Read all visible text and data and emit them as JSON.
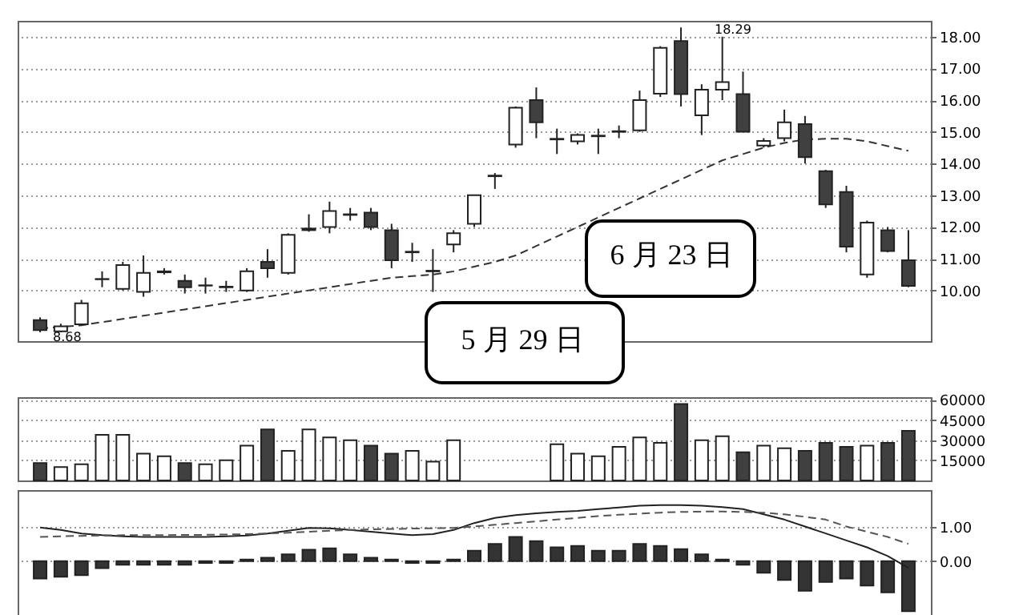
{
  "chart_data": [
    {
      "type": "candlestick",
      "categories": [
        null,
        null,
        null,
        null,
        null,
        null,
        null,
        null,
        null,
        null,
        null,
        null,
        null,
        null,
        null,
        null,
        null,
        null,
        null,
        null,
        null,
        null,
        null,
        null,
        null,
        null,
        null,
        null,
        null,
        null,
        null,
        null,
        null,
        null,
        null,
        null,
        null,
        null,
        null,
        null,
        null,
        null,
        null
      ],
      "ohlc": [
        [
          9.06,
          9.15,
          8.68,
          8.75
        ],
        [
          8.71,
          8.95,
          8.68,
          8.87
        ],
        [
          8.93,
          9.7,
          8.9,
          9.59
        ],
        [
          10.35,
          10.6,
          10.1,
          10.36
        ],
        [
          10.05,
          10.9,
          10.0,
          10.8
        ],
        [
          9.95,
          11.1,
          9.8,
          10.55
        ],
        [
          10.57,
          10.7,
          10.5,
          10.6
        ],
        [
          10.3,
          10.5,
          9.9,
          10.1
        ],
        [
          10.15,
          10.4,
          9.9,
          10.16
        ],
        [
          10.1,
          10.3,
          9.95,
          10.12
        ],
        [
          10.0,
          10.7,
          9.95,
          10.6
        ],
        [
          10.9,
          11.3,
          10.4,
          10.7
        ],
        [
          10.55,
          11.8,
          10.5,
          11.75
        ],
        [
          11.9,
          12.4,
          11.85,
          11.95
        ],
        [
          12.0,
          12.8,
          11.8,
          12.5
        ],
        [
          12.38,
          12.6,
          12.2,
          12.4
        ],
        [
          12.45,
          12.6,
          11.9,
          12.0
        ],
        [
          11.9,
          12.1,
          10.7,
          10.95
        ],
        [
          11.2,
          11.5,
          10.9,
          11.22
        ],
        [
          10.6,
          11.3,
          9.95,
          10.62
        ],
        [
          11.45,
          11.9,
          11.2,
          11.8
        ],
        [
          12.1,
          13.0,
          12.0,
          13.0
        ],
        [
          13.6,
          13.7,
          13.2,
          13.62
        ],
        [
          14.6,
          15.8,
          14.5,
          15.76
        ],
        [
          16.0,
          16.4,
          14.8,
          15.3
        ],
        [
          14.76,
          15.1,
          14.3,
          14.78
        ],
        [
          14.7,
          14.95,
          14.6,
          14.9
        ],
        [
          14.86,
          15.1,
          14.3,
          14.88
        ],
        [
          15.0,
          15.2,
          14.8,
          15.02
        ],
        [
          15.05,
          16.3,
          15.0,
          16.0
        ],
        [
          16.2,
          17.7,
          16.1,
          17.65
        ],
        [
          17.86,
          18.29,
          15.8,
          16.19
        ],
        [
          15.52,
          16.5,
          14.9,
          16.33
        ],
        [
          16.33,
          18.0,
          16.0,
          16.57
        ],
        [
          16.19,
          16.9,
          15.0,
          15.0
        ],
        [
          14.57,
          14.8,
          14.5,
          14.71
        ],
        [
          14.8,
          15.7,
          14.7,
          15.3
        ],
        [
          15.24,
          15.5,
          14.0,
          14.2
        ],
        [
          13.76,
          13.8,
          12.6,
          12.71
        ],
        [
          13.1,
          13.3,
          11.2,
          11.38
        ],
        [
          10.5,
          12.2,
          10.4,
          12.14
        ],
        [
          11.9,
          12.0,
          11.2,
          11.24
        ],
        [
          10.95,
          11.9,
          10.1,
          10.14
        ]
      ],
      "series": [
        {
          "type": "line",
          "color": "#333333",
          "line_style": "dashed",
          "values": [
            8.8,
            8.85,
            8.9,
            9.0,
            9.1,
            9.2,
            9.3,
            9.4,
            9.5,
            9.6,
            9.7,
            9.8,
            9.9,
            10.0,
            10.1,
            10.2,
            10.3,
            10.4,
            10.45,
            10.5,
            10.6,
            10.75,
            10.9,
            11.1,
            11.4,
            11.7,
            12.0,
            12.3,
            12.6,
            12.9,
            13.2,
            13.5,
            13.8,
            14.1,
            14.3,
            14.5,
            14.65,
            14.76,
            14.78,
            14.78,
            14.7,
            14.55,
            14.4
          ]
        }
      ],
      "ylim": [
        8.4,
        18.5
      ],
      "yticks": [
        {
          "value": 10,
          "label": "10.00"
        },
        {
          "value": 11,
          "label": "11.00"
        },
        {
          "value": 12,
          "label": "12.00"
        },
        {
          "value": 13,
          "label": "13.00"
        },
        {
          "value": 14,
          "label": "14.00"
        },
        {
          "value": 15,
          "label": "15.00"
        },
        {
          "value": 16,
          "label": "16.00"
        },
        {
          "value": 17,
          "label": "17.00"
        },
        {
          "value": 18,
          "label": "18.00"
        }
      ],
      "grid": "y",
      "tick_labels": "y",
      "annotations": [
        "18.29",
        "8.68",
        "6 月 23 日",
        "5 月 29 日"
      ]
    },
    {
      "type": "bar",
      "categories": [
        null,
        null,
        null,
        null,
        null,
        null,
        null,
        null,
        null,
        null,
        null,
        null,
        null,
        null,
        null,
        null,
        null,
        null,
        null,
        null,
        null,
        null,
        null,
        null,
        null,
        null,
        null,
        null,
        null,
        null,
        null,
        null,
        null,
        null,
        null,
        null,
        null,
        null,
        null,
        null,
        null,
        null,
        null
      ],
      "values": [
        13000,
        10000,
        12000,
        34000,
        34000,
        20000,
        18000,
        13000,
        12000,
        15000,
        26000,
        38000,
        22000,
        38000,
        32000,
        30000,
        26000,
        20000,
        22000,
        14000,
        30000,
        null,
        null,
        null,
        null,
        27000,
        20000,
        18000,
        25000,
        32000,
        28000,
        57000,
        30000,
        33000,
        21000,
        26000,
        24000,
        22000,
        28000,
        25000,
        26000,
        28000,
        37000
      ],
      "colors": [
        "#404040",
        "#ffffff",
        "#ffffff",
        "#ffffff",
        "#ffffff",
        "#ffffff",
        "#ffffff",
        "#404040",
        "#ffffff",
        "#ffffff",
        "#ffffff",
        "#404040",
        "#ffffff",
        "#ffffff",
        "#ffffff",
        "#ffffff",
        "#404040",
        "#404040",
        "#ffffff",
        "#ffffff",
        "#ffffff",
        "#ffffff",
        "#ffffff",
        "#ffffff",
        "#404040",
        "#ffffff",
        "#ffffff",
        "#ffffff",
        "#ffffff",
        "#ffffff",
        "#ffffff",
        "#404040",
        "#ffffff",
        "#ffffff",
        "#404040",
        "#ffffff",
        "#ffffff",
        "#404040",
        "#404040",
        "#404040",
        "#ffffff",
        "#404040",
        "#404040"
      ],
      "ylim": [
        0,
        62000
      ],
      "yticks": [
        15000,
        30000,
        45000,
        60000
      ],
      "grid": "y",
      "tick_labels": "y"
    },
    {
      "type": "bar",
      "categories": [
        null,
        null,
        null,
        null,
        null,
        null,
        null,
        null,
        null,
        null,
        null,
        null,
        null,
        null,
        null,
        null,
        null,
        null,
        null,
        null,
        null,
        null,
        null,
        null,
        null,
        null,
        null,
        null,
        null,
        null,
        null,
        null,
        null,
        null,
        null,
        null,
        null,
        null,
        null,
        null,
        null,
        null,
        null
      ],
      "series": [
        {
          "type": "bar",
          "color": "#333333",
          "values": [
            -0.5,
            -0.45,
            -0.4,
            -0.2,
            -0.1,
            -0.1,
            -0.1,
            -0.1,
            -0.05,
            -0.05,
            0.05,
            0.1,
            0.2,
            0.33,
            0.37,
            0.2,
            0.1,
            0.05,
            -0.05,
            -0.05,
            0.05,
            0.3,
            0.5,
            0.7,
            0.58,
            0.4,
            0.44,
            0.3,
            0.3,
            0.5,
            0.44,
            0.35,
            0.2,
            0.05,
            -0.1,
            -0.33,
            -0.54,
            -0.85,
            -0.6,
            -0.5,
            -0.7,
            -0.9,
            -1.44
          ]
        },
        {
          "type": "line",
          "color": "#222222",
          "line_style": "solid",
          "values": [
            0.97,
            0.9,
            0.8,
            0.75,
            0.72,
            0.7,
            0.7,
            0.7,
            0.7,
            0.72,
            0.74,
            0.8,
            0.88,
            0.96,
            0.95,
            0.9,
            0.85,
            0.8,
            0.75,
            0.78,
            0.9,
            1.1,
            1.25,
            1.33,
            1.38,
            1.42,
            1.45,
            1.5,
            1.55,
            1.6,
            1.62,
            1.62,
            1.6,
            1.56,
            1.5,
            1.35,
            1.2,
            1.0,
            0.8,
            0.6,
            0.4,
            0.15,
            -0.19
          ]
        },
        {
          "type": "line",
          "color": "#555555",
          "line_style": "dashed",
          "values": [
            0.7,
            0.72,
            0.73,
            0.74,
            0.75,
            0.75,
            0.75,
            0.76,
            0.76,
            0.77,
            0.78,
            0.8,
            0.82,
            0.85,
            0.88,
            0.9,
            0.92,
            0.93,
            0.94,
            0.95,
            0.96,
            1.0,
            1.05,
            1.1,
            1.15,
            1.2,
            1.25,
            1.3,
            1.34,
            1.37,
            1.4,
            1.42,
            1.43,
            1.43,
            1.42,
            1.4,
            1.35,
            1.28,
            1.2,
            1.0,
            0.85,
            0.7,
            0.5
          ]
        }
      ],
      "ylim": [
        -1.55,
        2.05
      ],
      "yticks": [
        {
          "value": 0,
          "label": "0.00"
        },
        {
          "value": 1,
          "label": "1.00"
        }
      ],
      "grid": "y",
      "tick_labels": "y"
    }
  ]
}
